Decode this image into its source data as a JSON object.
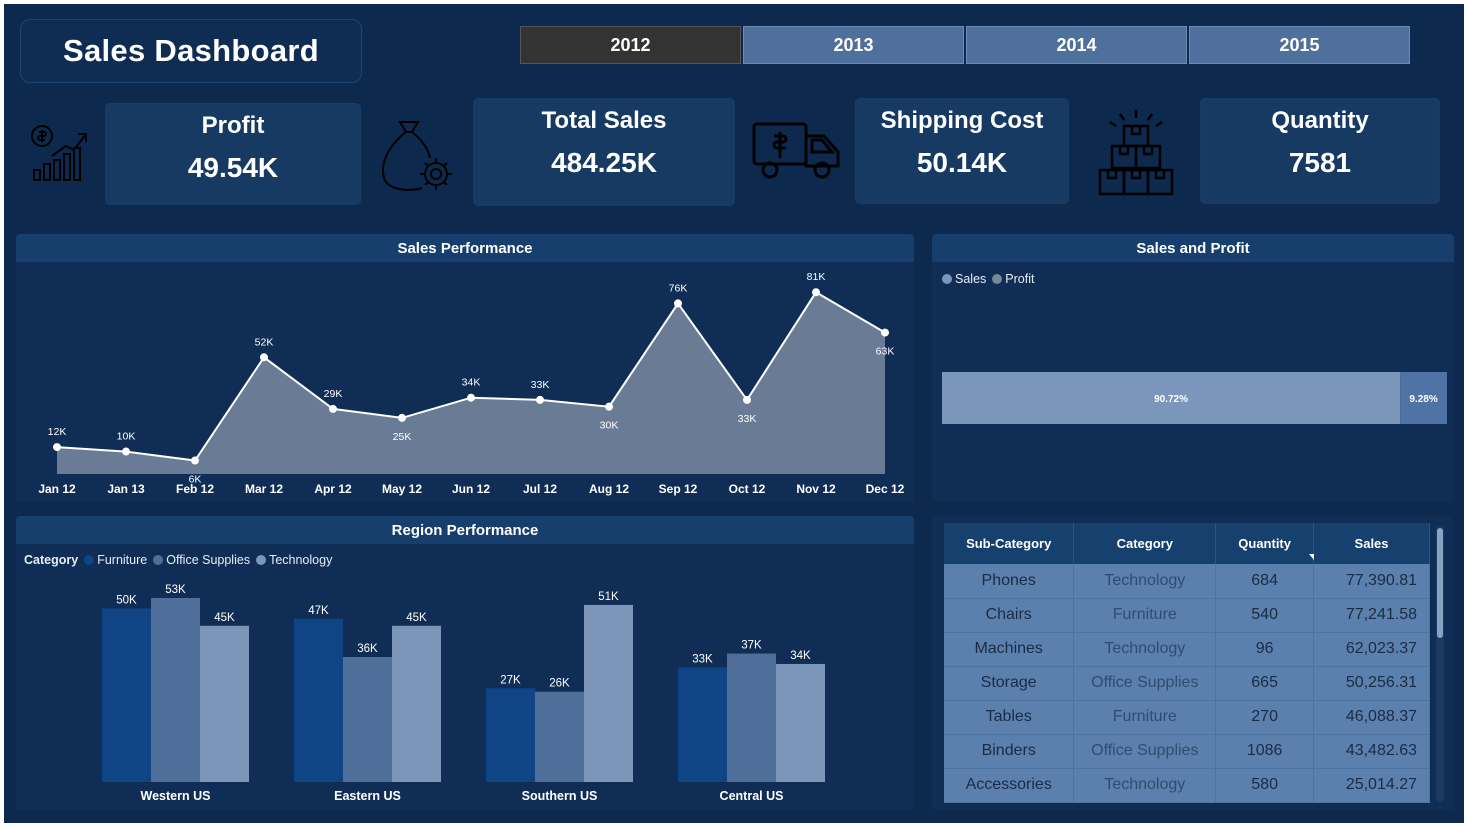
{
  "title": "Sales Dashboard",
  "years": [
    "2012",
    "2013",
    "2014",
    "2015"
  ],
  "active_year": "2012",
  "kpis": {
    "profit": {
      "label": "Profit",
      "value": "49.54K"
    },
    "sales": {
      "label": "Total Sales",
      "value": "484.25K"
    },
    "shipping": {
      "label": "Shipping Cost",
      "value": "50.14K"
    },
    "quantity": {
      "label": "Quantity",
      "value": "7581"
    }
  },
  "sales_performance": {
    "title": "Sales Performance",
    "chart_data": {
      "type": "area",
      "categories": [
        "Jan 12",
        "Jan 13",
        "Feb 12",
        "Mar 12",
        "Apr 12",
        "May 12",
        "Jun 12",
        "Jul 12",
        "Aug 12",
        "Sep 12",
        "Oct 12",
        "Nov 12",
        "Dec 12"
      ],
      "values": [
        12,
        10,
        6,
        52,
        29,
        25,
        34,
        33,
        30,
        76,
        33,
        81,
        63
      ],
      "labels": [
        "12K",
        "10K",
        "6K",
        "52K",
        "29K",
        "25K",
        "34K",
        "33K",
        "30K",
        "76K",
        "33K",
        "81K",
        "63K"
      ],
      "ylim": [
        0,
        90
      ],
      "colors": {
        "area": "#6a7c95",
        "line": "#ffffff"
      }
    }
  },
  "sales_profit": {
    "title": "Sales and Profit",
    "legend": [
      "Sales",
      "Profit"
    ],
    "chart_data": {
      "type": "bar",
      "stacked": true,
      "series": [
        {
          "name": "Sales",
          "value": 90.72,
          "label": "90.72%",
          "color": "#7a97bb"
        },
        {
          "name": "Profit",
          "value": 9.28,
          "label": "9.28%",
          "color": "#4f73a4"
        }
      ]
    }
  },
  "region_performance": {
    "title": "Region Performance",
    "legend_title": "Category",
    "chart_data": {
      "type": "bar",
      "categories": [
        "Western US",
        "Eastern US",
        "Southern US",
        "Central US"
      ],
      "series": [
        {
          "name": "Furniture",
          "values": [
            50,
            47,
            27,
            33
          ],
          "labels": [
            "50K",
            "47K",
            "27K",
            "33K"
          ],
          "color": "#0f4584"
        },
        {
          "name": "Office Supplies",
          "values": [
            53,
            36,
            26,
            37
          ],
          "labels": [
            "53K",
            "36K",
            "26K",
            "37K"
          ],
          "color": "#4f6e99"
        },
        {
          "name": "Technology",
          "values": [
            45,
            45,
            51,
            34
          ],
          "labels": [
            "45K",
            "45K",
            "51K",
            "34K"
          ],
          "color": "#7b96b9"
        }
      ],
      "ylim": [
        0,
        60
      ]
    }
  },
  "table": {
    "headers": [
      "Sub-Category",
      "Category",
      "Quantity",
      "Sales"
    ],
    "rows": [
      [
        "Phones",
        "Technology",
        "684",
        "77,390.81"
      ],
      [
        "Chairs",
        "Furniture",
        "540",
        "77,241.58"
      ],
      [
        "Machines",
        "Technology",
        "96",
        "62,023.37"
      ],
      [
        "Storage",
        "Office Supplies",
        "665",
        "50,256.31"
      ],
      [
        "Tables",
        "Furniture",
        "270",
        "46,088.37"
      ],
      [
        "Binders",
        "Office Supplies",
        "1086",
        "43,482.63"
      ],
      [
        "Accessories",
        "Technology",
        "580",
        "25,014.27"
      ]
    ]
  }
}
